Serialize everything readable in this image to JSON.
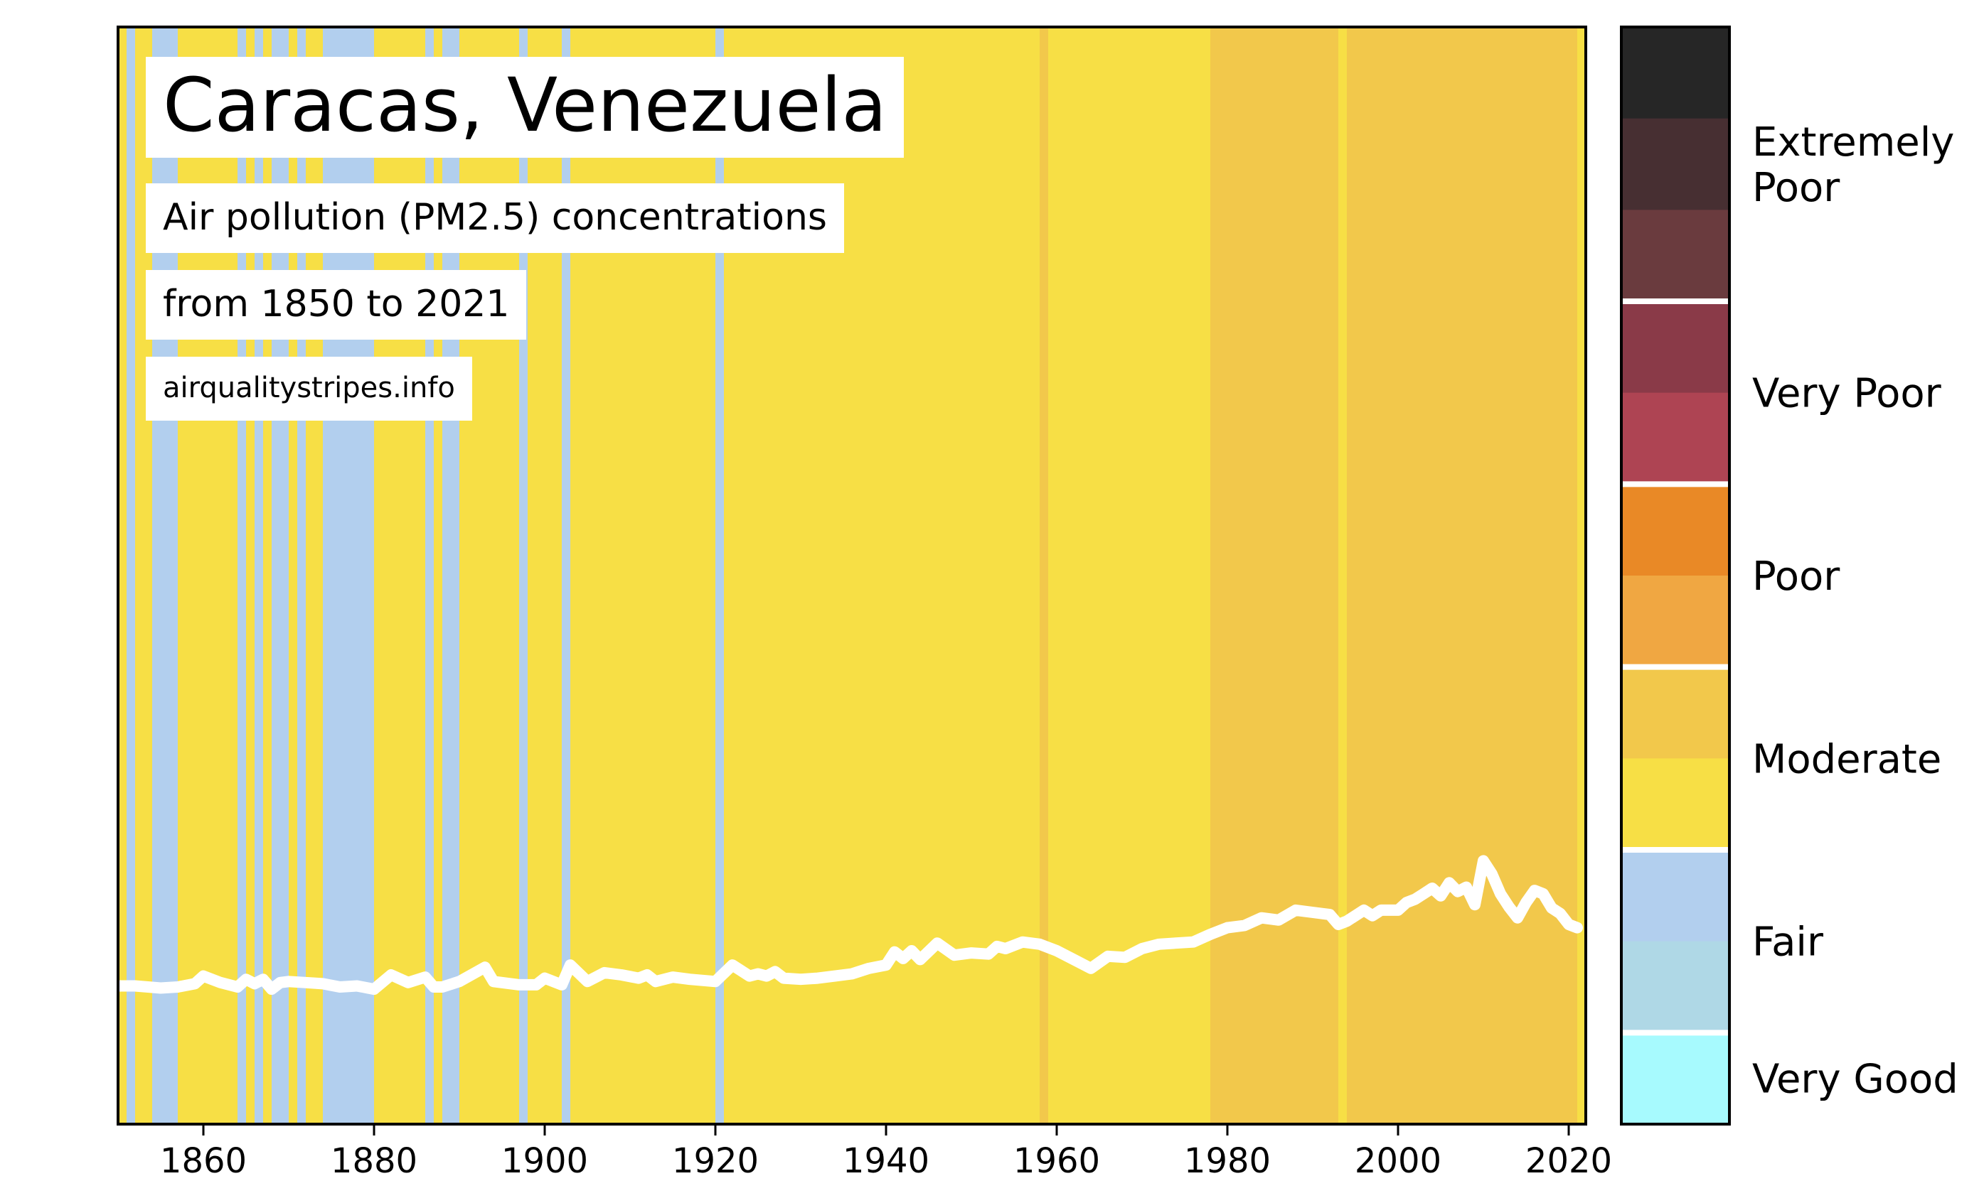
{
  "header": {
    "title": "Caracas, Venezuela",
    "subtitle": "Air pollution (PM2.5) concentrations",
    "period": "from 1850 to 2021",
    "source": "airqualitystripes.info"
  },
  "chart_data": {
    "type": "stripes",
    "x": {
      "range": [
        1850,
        2022
      ],
      "ticks": [
        "1860",
        "1880",
        "1900",
        "1920",
        "1940",
        "1960",
        "1980",
        "2000",
        "2020"
      ]
    },
    "y": {
      "range": [
        0,
        100
      ]
    },
    "colors": {
      "fair": "#b2cfee",
      "moderate_light": "#f7df45",
      "moderate_dark": "#f2c84b",
      "line": "#ffffff"
    },
    "stripes": [
      {
        "from": 1850,
        "to": 1851,
        "category": "moderate_light"
      },
      {
        "from": 1851,
        "to": 1852,
        "category": "fair"
      },
      {
        "from": 1852,
        "to": 1853,
        "category": "moderate_light"
      },
      {
        "from": 1853,
        "to": 1854,
        "category": "moderate_light"
      },
      {
        "from": 1854,
        "to": 1857,
        "category": "fair"
      },
      {
        "from": 1857,
        "to": 1864,
        "category": "moderate_light"
      },
      {
        "from": 1864,
        "to": 1865,
        "category": "fair"
      },
      {
        "from": 1865,
        "to": 1866,
        "category": "moderate_light"
      },
      {
        "from": 1866,
        "to": 1867,
        "category": "fair"
      },
      {
        "from": 1867,
        "to": 1868,
        "category": "moderate_light"
      },
      {
        "from": 1868,
        "to": 1870,
        "category": "fair"
      },
      {
        "from": 1870,
        "to": 1871,
        "category": "moderate_light"
      },
      {
        "from": 1871,
        "to": 1872,
        "category": "fair"
      },
      {
        "from": 1872,
        "to": 1874,
        "category": "moderate_light"
      },
      {
        "from": 1874,
        "to": 1880,
        "category": "fair"
      },
      {
        "from": 1880,
        "to": 1886,
        "category": "moderate_light"
      },
      {
        "from": 1886,
        "to": 1887,
        "category": "fair"
      },
      {
        "from": 1887,
        "to": 1888,
        "category": "moderate_light"
      },
      {
        "from": 1888,
        "to": 1890,
        "category": "fair"
      },
      {
        "from": 1890,
        "to": 1897,
        "category": "moderate_light"
      },
      {
        "from": 1897,
        "to": 1898,
        "category": "fair"
      },
      {
        "from": 1898,
        "to": 1902,
        "category": "moderate_light"
      },
      {
        "from": 1902,
        "to": 1903,
        "category": "fair"
      },
      {
        "from": 1903,
        "to": 1920,
        "category": "moderate_light"
      },
      {
        "from": 1920,
        "to": 1921,
        "category": "fair"
      },
      {
        "from": 1921,
        "to": 1958,
        "category": "moderate_light"
      },
      {
        "from": 1958,
        "to": 1959,
        "category": "moderate_dark"
      },
      {
        "from": 1959,
        "to": 1978,
        "category": "moderate_light"
      },
      {
        "from": 1978,
        "to": 1993,
        "category": "moderate_dark"
      },
      {
        "from": 1993,
        "to": 1994,
        "category": "moderate_light"
      },
      {
        "from": 1994,
        "to": 2021,
        "category": "moderate_dark"
      },
      {
        "from": 2021,
        "to": 2022,
        "category": "moderate_light"
      }
    ],
    "line": {
      "x": [
        1850,
        1852,
        1855,
        1857,
        1859,
        1860,
        1862,
        1864,
        1865,
        1866,
        1867,
        1868,
        1869,
        1870,
        1872,
        1874,
        1876,
        1878,
        1880,
        1882,
        1884,
        1886,
        1887,
        1888,
        1890,
        1893,
        1894,
        1897,
        1899,
        1900,
        1902,
        1903,
        1905,
        1907,
        1909,
        1911,
        1912,
        1913,
        1915,
        1917,
        1920,
        1922,
        1924,
        1925,
        1926,
        1927,
        1928,
        1930,
        1932,
        1934,
        1936,
        1938,
        1940,
        1941,
        1942,
        1943,
        1944,
        1946,
        1948,
        1950,
        1952,
        1953,
        1954,
        1956,
        1958,
        1960,
        1962,
        1964,
        1966,
        1968,
        1970,
        1972,
        1974,
        1976,
        1978,
        1980,
        1982,
        1984,
        1986,
        1988,
        1990,
        1992,
        1993,
        1994,
        1996,
        1997,
        1998,
        2000,
        2001,
        2002,
        2003,
        2004,
        2005,
        2006,
        2007,
        2008,
        2009,
        2010,
        2011,
        2012,
        2013,
        2014,
        2015,
        2016,
        2017,
        2018,
        2019,
        2020,
        2021
      ],
      "y": [
        12.6,
        12.6,
        12.4,
        12.5,
        12.8,
        13.5,
        12.9,
        12.5,
        13.2,
        12.8,
        13.2,
        12.3,
        12.9,
        13.0,
        12.9,
        12.8,
        12.5,
        12.6,
        12.3,
        13.6,
        12.9,
        13.4,
        12.5,
        12.5,
        13.0,
        14.3,
        13.0,
        12.7,
        12.7,
        13.3,
        12.7,
        14.5,
        13.0,
        13.8,
        13.6,
        13.3,
        13.6,
        13.0,
        13.4,
        13.2,
        13.0,
        14.5,
        13.5,
        13.7,
        13.5,
        13.9,
        13.3,
        13.2,
        13.3,
        13.5,
        13.7,
        14.2,
        14.5,
        15.7,
        15.1,
        15.8,
        15.0,
        16.5,
        15.4,
        15.6,
        15.5,
        16.2,
        16.0,
        16.6,
        16.4,
        15.8,
        15.0,
        14.2,
        15.3,
        15.2,
        16.0,
        16.4,
        16.5,
        16.6,
        17.3,
        17.9,
        18.1,
        18.8,
        18.6,
        19.5,
        19.3,
        19.1,
        18.2,
        18.5,
        19.5,
        19.0,
        19.5,
        19.5,
        20.2,
        20.5,
        21.0,
        21.5,
        20.8,
        22.0,
        21.2,
        21.6,
        20.0,
        24.0,
        22.8,
        21.0,
        19.8,
        18.8,
        20.2,
        21.3,
        21.0,
        19.7,
        19.2,
        18.2,
        17.9
      ]
    },
    "legend": {
      "swatches": [
        "#262626",
        "#472f32",
        "#6a3b3e",
        "#8a3a48",
        "#ae4453",
        "#e98926",
        "#f0a742",
        "#f2c84b",
        "#f7df45",
        "#b2cfee",
        "#afd8e6",
        "#a7fafe"
      ],
      "labels": [
        "Extremely Poor",
        "Very Poor",
        "Poor",
        "Moderate",
        "Fair",
        "Very Good"
      ]
    }
  }
}
